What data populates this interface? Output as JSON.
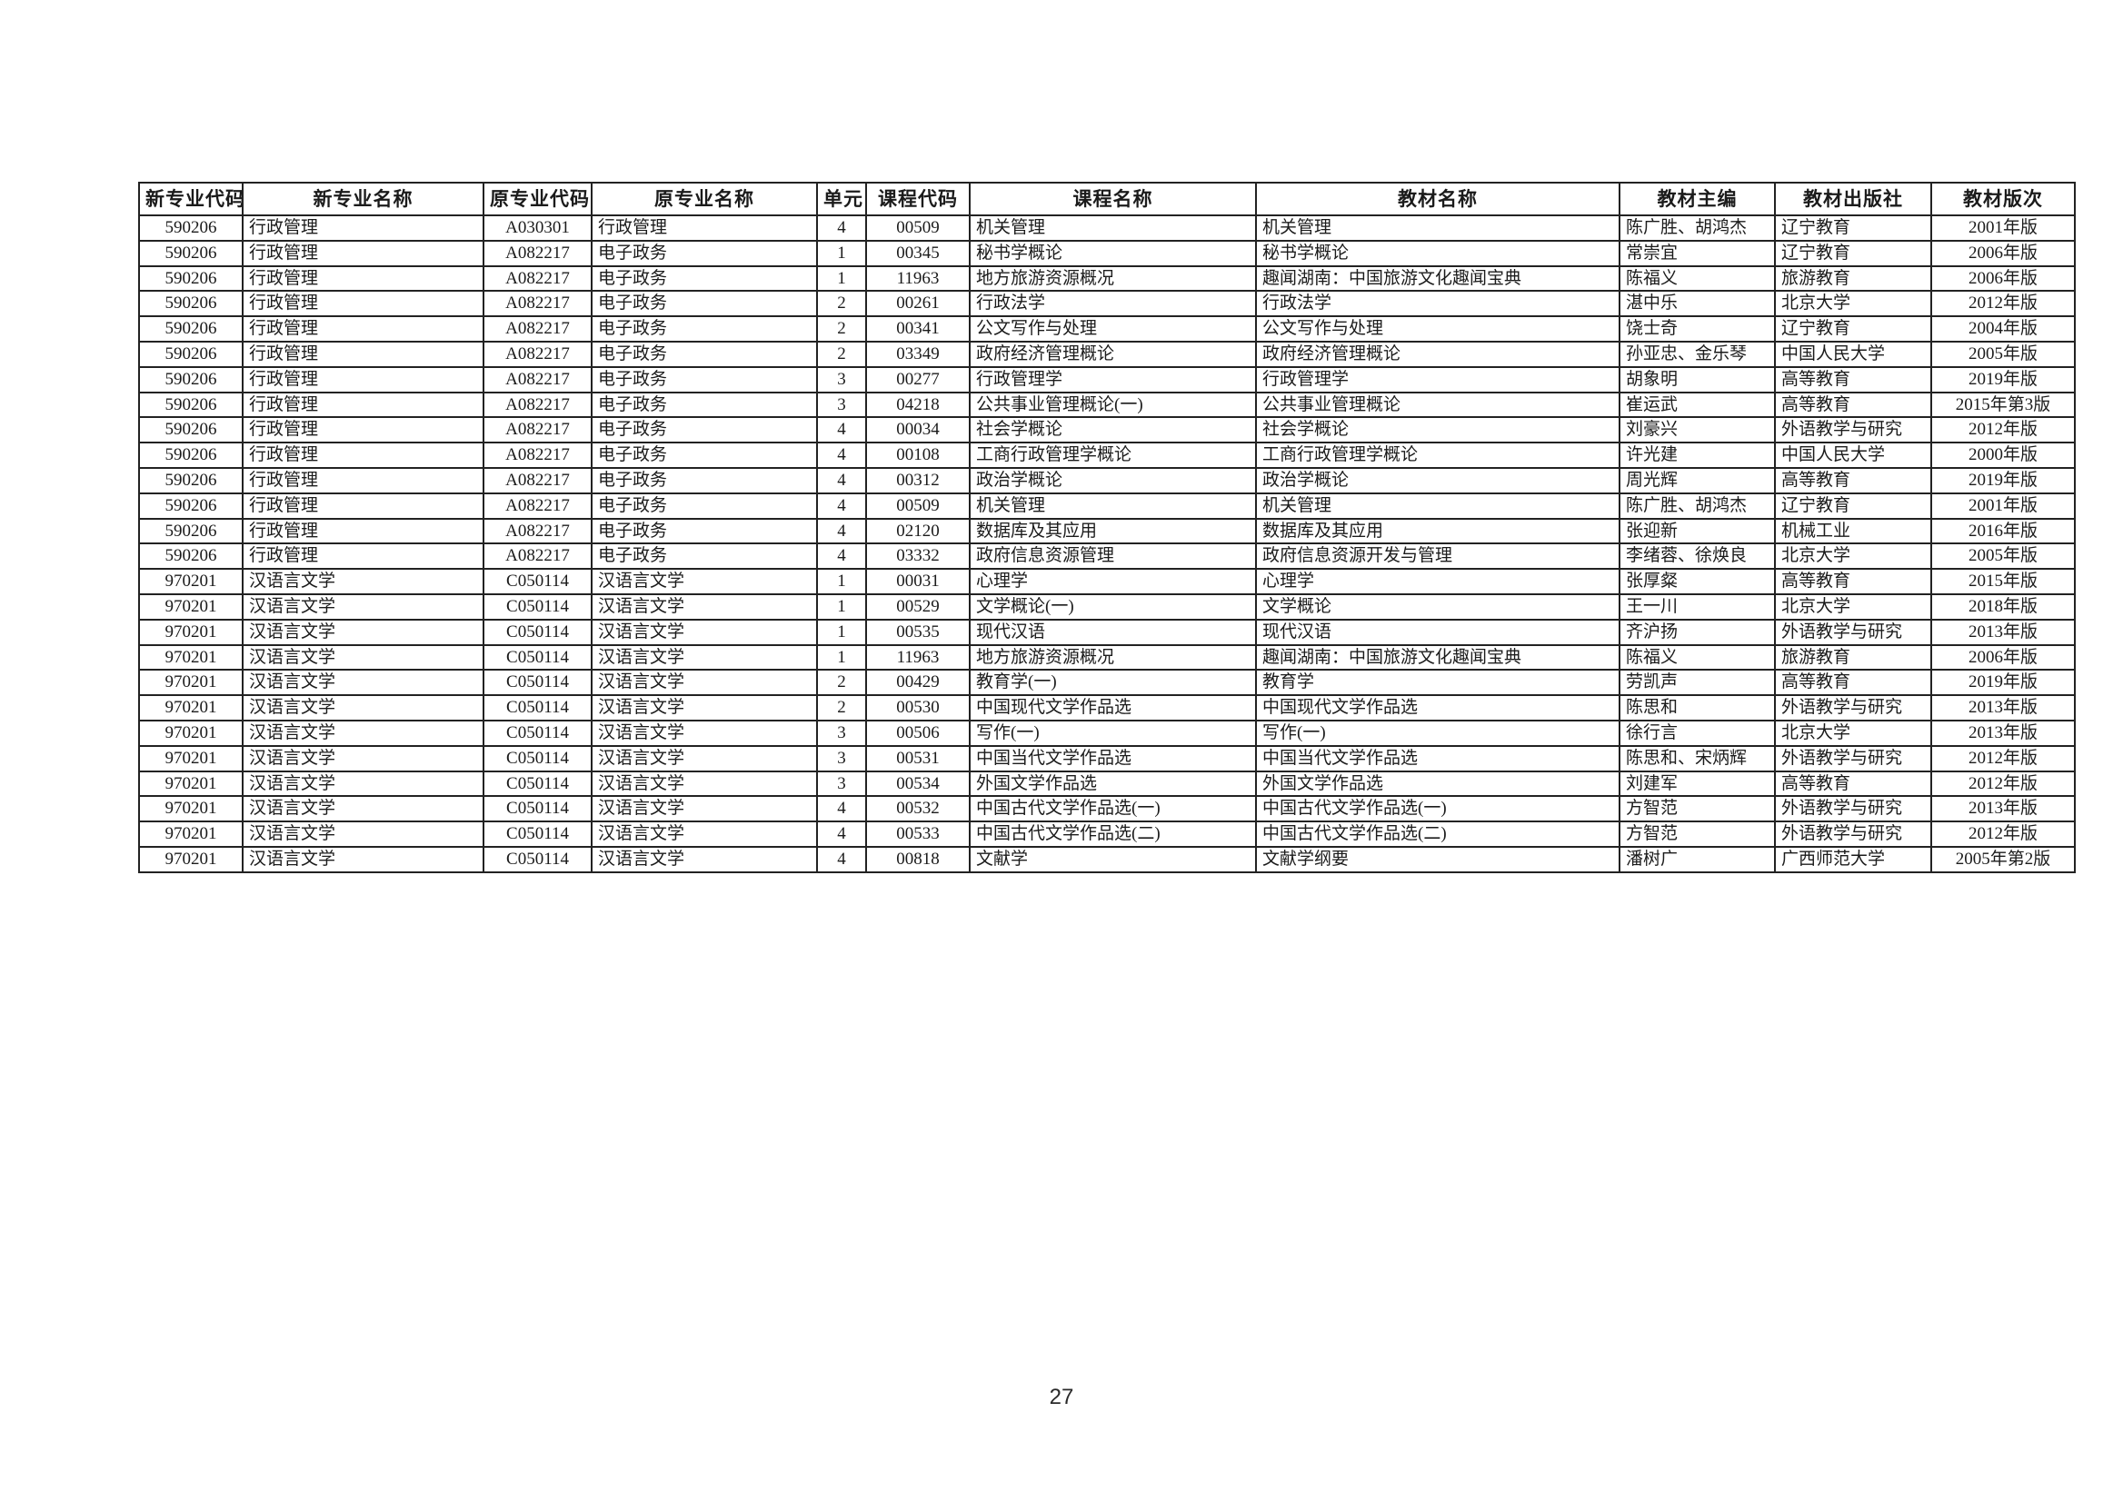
{
  "page": {
    "number": "27"
  },
  "table": {
    "headers": [
      "新专业代码",
      "新专业名称",
      "原专业代码",
      "原专业名称",
      "单元",
      "课程代码",
      "课程名称",
      "教材名称",
      "教材主编",
      "教材出版社",
      "教材版次"
    ],
    "rows": [
      [
        "590206",
        "行政管理",
        "A030301",
        "行政管理",
        "4",
        "00509",
        "机关管理",
        "机关管理",
        "陈广胜、胡鸿杰",
        "辽宁教育",
        "2001年版"
      ],
      [
        "590206",
        "行政管理",
        "A082217",
        "电子政务",
        "1",
        "00345",
        "秘书学概论",
        "秘书学概论",
        "常崇宜",
        "辽宁教育",
        "2006年版"
      ],
      [
        "590206",
        "行政管理",
        "A082217",
        "电子政务",
        "1",
        "11963",
        "地方旅游资源概况",
        "趣闻湖南：中国旅游文化趣闻宝典",
        "陈福义",
        "旅游教育",
        "2006年版"
      ],
      [
        "590206",
        "行政管理",
        "A082217",
        "电子政务",
        "2",
        "00261",
        "行政法学",
        "行政法学",
        "湛中乐",
        "北京大学",
        "2012年版"
      ],
      [
        "590206",
        "行政管理",
        "A082217",
        "电子政务",
        "2",
        "00341",
        "公文写作与处理",
        "公文写作与处理",
        "饶士奇",
        "辽宁教育",
        "2004年版"
      ],
      [
        "590206",
        "行政管理",
        "A082217",
        "电子政务",
        "2",
        "03349",
        "政府经济管理概论",
        "政府经济管理概论",
        "孙亚忠、金乐琴",
        "中国人民大学",
        "2005年版"
      ],
      [
        "590206",
        "行政管理",
        "A082217",
        "电子政务",
        "3",
        "00277",
        "行政管理学",
        "行政管理学",
        "胡象明",
        "高等教育",
        "2019年版"
      ],
      [
        "590206",
        "行政管理",
        "A082217",
        "电子政务",
        "3",
        "04218",
        "公共事业管理概论(一)",
        "公共事业管理概论",
        "崔运武",
        "高等教育",
        "2015年第3版"
      ],
      [
        "590206",
        "行政管理",
        "A082217",
        "电子政务",
        "4",
        "00034",
        "社会学概论",
        "社会学概论",
        "刘豪兴",
        "外语教学与研究",
        "2012年版"
      ],
      [
        "590206",
        "行政管理",
        "A082217",
        "电子政务",
        "4",
        "00108",
        "工商行政管理学概论",
        "工商行政管理学概论",
        "许光建",
        "中国人民大学",
        "2000年版"
      ],
      [
        "590206",
        "行政管理",
        "A082217",
        "电子政务",
        "4",
        "00312",
        "政治学概论",
        "政治学概论",
        "周光辉",
        "高等教育",
        "2019年版"
      ],
      [
        "590206",
        "行政管理",
        "A082217",
        "电子政务",
        "4",
        "00509",
        "机关管理",
        "机关管理",
        "陈广胜、胡鸿杰",
        "辽宁教育",
        "2001年版"
      ],
      [
        "590206",
        "行政管理",
        "A082217",
        "电子政务",
        "4",
        "02120",
        "数据库及其应用",
        "数据库及其应用",
        "张迎新",
        "机械工业",
        "2016年版"
      ],
      [
        "590206",
        "行政管理",
        "A082217",
        "电子政务",
        "4",
        "03332",
        "政府信息资源管理",
        "政府信息资源开发与管理",
        "李绪蓉、徐焕良",
        "北京大学",
        "2005年版"
      ],
      [
        "970201",
        "汉语言文学",
        "C050114",
        "汉语言文学",
        "1",
        "00031",
        "心理学",
        "心理学",
        "张厚粲",
        "高等教育",
        "2015年版"
      ],
      [
        "970201",
        "汉语言文学",
        "C050114",
        "汉语言文学",
        "1",
        "00529",
        "文学概论(一)",
        "文学概论",
        "王一川",
        "北京大学",
        "2018年版"
      ],
      [
        "970201",
        "汉语言文学",
        "C050114",
        "汉语言文学",
        "1",
        "00535",
        "现代汉语",
        "现代汉语",
        "齐沪扬",
        "外语教学与研究",
        "2013年版"
      ],
      [
        "970201",
        "汉语言文学",
        "C050114",
        "汉语言文学",
        "1",
        "11963",
        "地方旅游资源概况",
        "趣闻湖南：中国旅游文化趣闻宝典",
        "陈福义",
        "旅游教育",
        "2006年版"
      ],
      [
        "970201",
        "汉语言文学",
        "C050114",
        "汉语言文学",
        "2",
        "00429",
        "教育学(一)",
        "教育学",
        "劳凯声",
        "高等教育",
        "2019年版"
      ],
      [
        "970201",
        "汉语言文学",
        "C050114",
        "汉语言文学",
        "2",
        "00530",
        "中国现代文学作品选",
        "中国现代文学作品选",
        "陈思和",
        "外语教学与研究",
        "2013年版"
      ],
      [
        "970201",
        "汉语言文学",
        "C050114",
        "汉语言文学",
        "3",
        "00506",
        "写作(一)",
        "写作(一)",
        "徐行言",
        "北京大学",
        "2013年版"
      ],
      [
        "970201",
        "汉语言文学",
        "C050114",
        "汉语言文学",
        "3",
        "00531",
        "中国当代文学作品选",
        "中国当代文学作品选",
        "陈思和、宋炳辉",
        "外语教学与研究",
        "2012年版"
      ],
      [
        "970201",
        "汉语言文学",
        "C050114",
        "汉语言文学",
        "3",
        "00534",
        "外国文学作品选",
        "外国文学作品选",
        "刘建军",
        "高等教育",
        "2012年版"
      ],
      [
        "970201",
        "汉语言文学",
        "C050114",
        "汉语言文学",
        "4",
        "00532",
        "中国古代文学作品选(一)",
        "中国古代文学作品选(一)",
        "方智范",
        "外语教学与研究",
        "2013年版"
      ],
      [
        "970201",
        "汉语言文学",
        "C050114",
        "汉语言文学",
        "4",
        "00533",
        "中国古代文学作品选(二)",
        "中国古代文学作品选(二)",
        "方智范",
        "外语教学与研究",
        "2012年版"
      ],
      [
        "970201",
        "汉语言文学",
        "C050114",
        "汉语言文学",
        "4",
        "00818",
        "文献学",
        "文献学纲要",
        "潘树广",
        "广西师范大学",
        "2005年第2版"
      ]
    ]
  }
}
